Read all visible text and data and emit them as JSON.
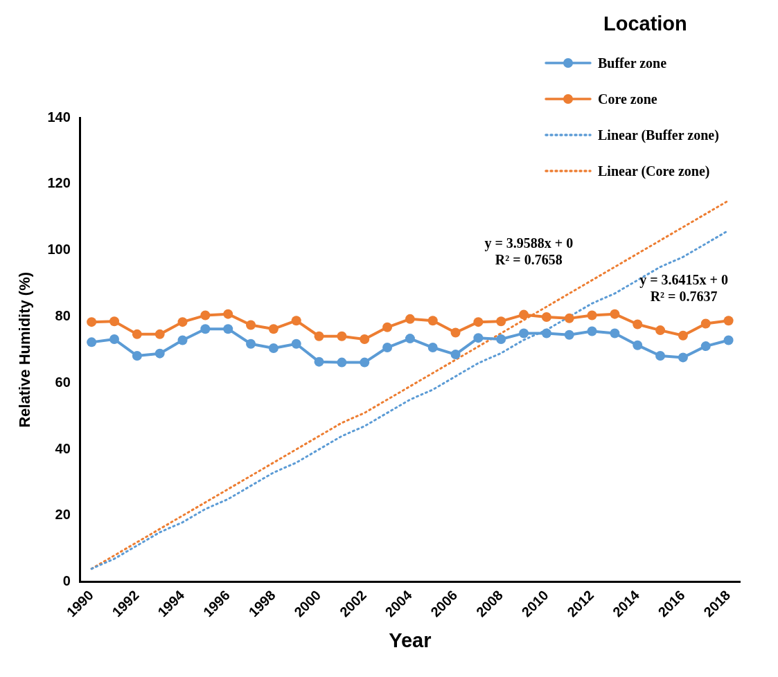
{
  "chart_data": {
    "type": "line",
    "xlabel": "Year",
    "ylabel": "Relative Humidity (%)",
    "legend_title": "Location",
    "legend": "top right",
    "grid": false,
    "marker": "circle",
    "line_style": "solid",
    "categories": [
      "1990",
      null,
      "1992",
      null,
      "1994",
      null,
      "1996",
      null,
      "1998",
      null,
      "2000",
      null,
      "2002",
      null,
      "2004",
      null,
      "2006",
      null,
      "2008",
      null,
      "2010",
      null,
      "2012",
      null,
      "2014",
      null,
      "2016",
      null,
      "2018"
    ],
    "ylim": [
      0,
      140
    ],
    "yticks": [
      0,
      20,
      40,
      60,
      80,
      100,
      120,
      140
    ],
    "series": [
      {
        "name": "Buffer zone",
        "color": "#5b9bd5",
        "values": [
          72.3,
          73.2,
          68.2,
          68.9,
          72.9,
          76.3,
          76.3,
          71.8,
          70.5,
          71.8,
          66.4,
          66.2,
          66.2,
          70.7,
          73.4,
          70.7,
          68.6,
          73.6,
          73.2,
          75.0,
          75.0,
          74.5,
          75.6,
          75.0,
          71.4,
          68.2,
          67.7,
          71.1,
          72.9
        ]
      },
      {
        "name": "Core zone",
        "color": "#ed7d31",
        "values": [
          78.4,
          78.6,
          74.7,
          74.7,
          78.4,
          80.4,
          80.8,
          77.5,
          76.3,
          78.8,
          74.1,
          74.1,
          73.2,
          76.8,
          79.3,
          78.8,
          75.2,
          78.4,
          78.6,
          80.6,
          79.9,
          79.5,
          80.4,
          80.8,
          77.7,
          75.9,
          74.3,
          77.9,
          78.8
        ]
      },
      {
        "name": "Linear (Buffer zone)",
        "type": "line",
        "color": "#5b9bd5",
        "marker": "none",
        "line_style": "dotted",
        "values": [
          4,
          7,
          11,
          15,
          18,
          22,
          25,
          29,
          33,
          36,
          40,
          44,
          47,
          51,
          55,
          58,
          62,
          66,
          69,
          73,
          76,
          80,
          84,
          87,
          91,
          95,
          98,
          102,
          106
        ]
      },
      {
        "name": "Linear (Core zone)",
        "type": "line",
        "color": "#ed7d31",
        "marker": "none",
        "line_style": "dotted",
        "values": [
          4,
          8,
          12,
          16,
          20,
          24,
          28,
          32,
          36,
          40,
          44,
          48,
          51,
          55,
          59,
          63,
          67,
          71,
          75,
          79,
          83,
          87,
          91,
          95,
          99,
          103,
          107,
          111,
          115
        ]
      }
    ],
    "annotations": [
      "y = 3.9588x + 0\nR² = 0.7658",
      "y = 3.6415x + 0\nR² = 0.7637"
    ]
  }
}
